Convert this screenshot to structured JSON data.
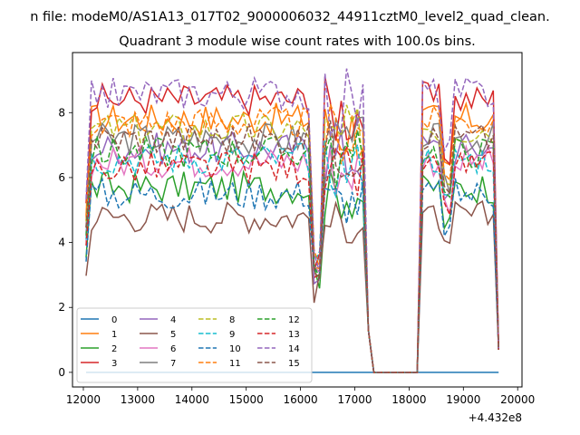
{
  "chart_data": {
    "type": "line",
    "suptitle": "n file: modeM0/AS1A13_017T02_9000006032_44911cztM0_level2_quad_clean.",
    "title": "Quadrant 3 module wise count rates with 100.0s bins.",
    "xlabel": "",
    "ylabel": "",
    "x_offset_label": "+4.432e8",
    "xlim": [
      11800,
      20080
    ],
    "ylim": [
      -0.45,
      9.85
    ],
    "xticks": [
      12000,
      13000,
      14000,
      15000,
      16000,
      17000,
      18000,
      19000,
      20000
    ],
    "xtick_labels": [
      "12000",
      "13000",
      "14000",
      "15000",
      "16000",
      "17000",
      "18000",
      "19000",
      "20000"
    ],
    "yticks": [
      0,
      2,
      4,
      6,
      8
    ],
    "ytick_labels": [
      "0",
      "2",
      "4",
      "6",
      "8"
    ],
    "grid": false,
    "legend": {
      "position": "lower-left",
      "columns": 4,
      "entries": [
        "0",
        "1",
        "2",
        "3",
        "4",
        "5",
        "6",
        "7",
        "8",
        "9",
        "10",
        "11",
        "12",
        "13",
        "14",
        "15"
      ]
    },
    "x_range": [
      12050,
      19650
    ],
    "x_step": 100,
    "gap": [
      17350,
      18150
    ],
    "series": [
      {
        "name": "0",
        "color": "#1f77b4",
        "dash": "solid",
        "level": 0.0,
        "low": 0.0
      },
      {
        "name": "1",
        "color": "#ff7f0e",
        "dash": "solid",
        "level": 7.8,
        "low": 2.8
      },
      {
        "name": "2",
        "color": "#2ca02c",
        "dash": "solid",
        "level": 5.7,
        "low": 2.5
      },
      {
        "name": "3",
        "color": "#d62728",
        "dash": "solid",
        "level": 8.4,
        "low": 2.6
      },
      {
        "name": "4",
        "color": "#9467bd",
        "dash": "solid",
        "level": 6.9,
        "low": 2.7
      },
      {
        "name": "5",
        "color": "#8c564b",
        "dash": "solid",
        "level": 4.8,
        "low": 2.1
      },
      {
        "name": "6",
        "color": "#e377c2",
        "dash": "solid",
        "level": 6.5,
        "low": 2.7
      },
      {
        "name": "7",
        "color": "#7f7f7f",
        "dash": "solid",
        "level": 7.2,
        "low": 2.8
      },
      {
        "name": "8",
        "color": "#bcbd22",
        "dash": "dashed",
        "level": 7.5,
        "low": 2.8
      },
      {
        "name": "9",
        "color": "#17becf",
        "dash": "dashed",
        "level": 6.6,
        "low": 2.8
      },
      {
        "name": "10",
        "color": "#1f77b4",
        "dash": "dashed",
        "level": 5.5,
        "low": 2.7
      },
      {
        "name": "11",
        "color": "#ff7f0e",
        "dash": "dashed",
        "level": 7.7,
        "low": 2.8
      },
      {
        "name": "12",
        "color": "#2ca02c",
        "dash": "dashed",
        "level": 6.8,
        "low": 2.8
      },
      {
        "name": "13",
        "color": "#d62728",
        "dash": "dashed",
        "level": 6.3,
        "low": 2.7
      },
      {
        "name": "14",
        "color": "#9467bd",
        "dash": "dashed",
        "level": 8.6,
        "low": 2.9
      },
      {
        "name": "15",
        "color": "#8c564b",
        "dash": "dashed",
        "level": 7.2,
        "low": 2.8
      }
    ]
  }
}
